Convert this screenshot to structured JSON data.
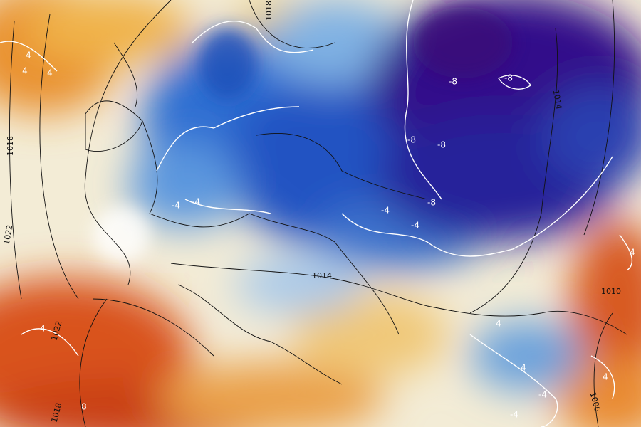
{
  "labels": {
    "isobars": [
      "1018",
      "1018",
      "1022",
      "1014",
      "1014",
      "1022",
      "1018",
      "1006",
      "1010"
    ],
    "isotherms": [
      "-8",
      "-8",
      "-8",
      "-8",
      "-8",
      "-4",
      "-4",
      "-4",
      "-4",
      "-4",
      "-4",
      "4",
      "4",
      "4",
      "4",
      "4",
      "4",
      "4",
      "4",
      "8"
    ]
  }
}
